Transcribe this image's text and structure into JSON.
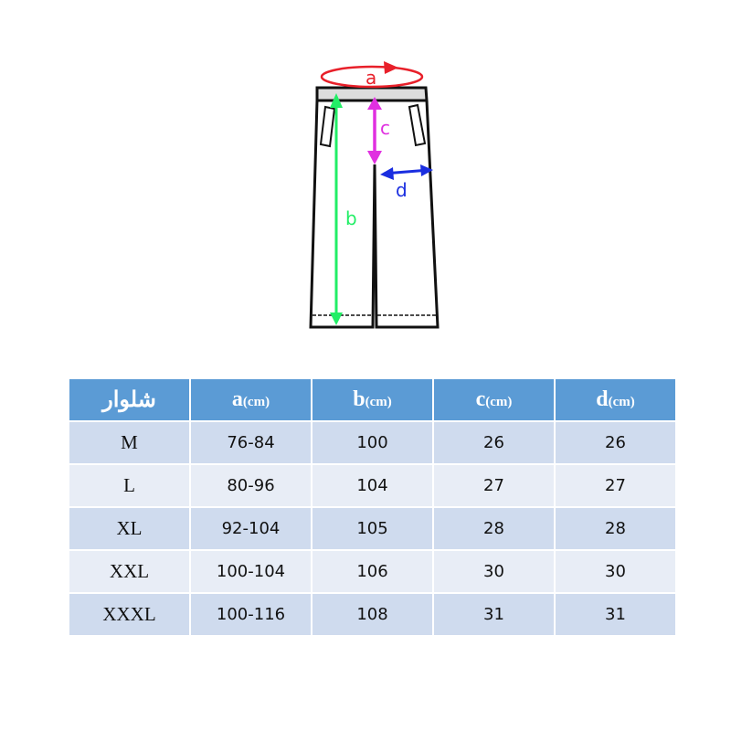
{
  "diagram": {
    "labels": {
      "a": "a",
      "b": "b",
      "c": "c",
      "d": "d"
    },
    "colors": {
      "a": "#e8202a",
      "b": "#22ee66",
      "c": "#e030e0",
      "d": "#1a2ee0"
    }
  },
  "table": {
    "header": [
      {
        "main": "شلوار",
        "unit": ""
      },
      {
        "main": "a",
        "unit": "(cm)"
      },
      {
        "main": "b",
        "unit": "(cm)"
      },
      {
        "main": "c",
        "unit": "(cm)"
      },
      {
        "main": "d",
        "unit": "(cm)"
      }
    ],
    "rows": [
      [
        "M",
        "76-84",
        "100",
        "26",
        "26"
      ],
      [
        "L",
        "80-96",
        "104",
        "27",
        "27"
      ],
      [
        "XL",
        "92-104",
        "105",
        "28",
        "28"
      ],
      [
        "XXL",
        "100-104",
        "106",
        "30",
        "30"
      ],
      [
        "XXXL",
        "100-116",
        "108",
        "31",
        "31"
      ]
    ],
    "colors": {
      "header": "#5b9bd5",
      "row_dark": "#cfdbee",
      "row_light": "#e8edf6"
    }
  }
}
